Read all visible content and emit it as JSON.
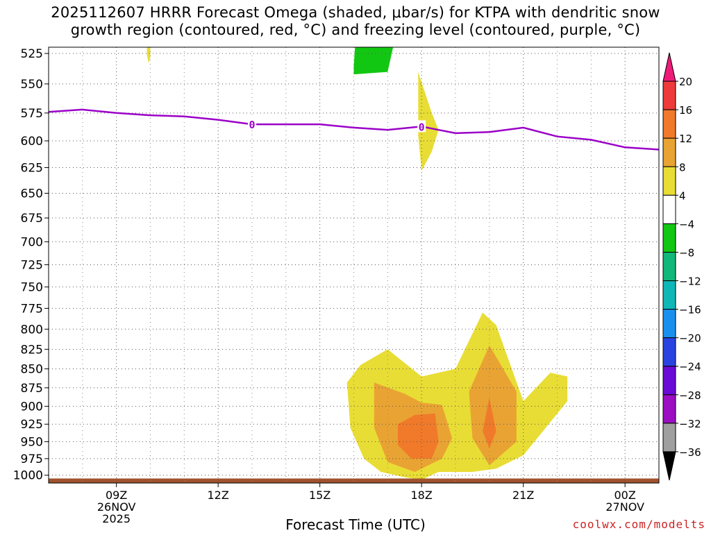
{
  "title": {
    "line1": "2025112607 HRRR Forecast Omega (shaded, μbar/s) for KTPA with dendritic snow",
    "line2": "growth region (contoured, red, °C) and freezing level (contoured, purple, °C)"
  },
  "credit": "coolwx.com/modelts",
  "chart_data": {
    "type": "contour",
    "xlabel": "Forecast Time (UTC)",
    "x_ticks": [
      {
        "label": "09Z",
        "sub1": "26NOV",
        "sub2": "2025",
        "hour": 9
      },
      {
        "label": "12Z",
        "sub1": "",
        "sub2": "",
        "hour": 12
      },
      {
        "label": "15Z",
        "sub1": "",
        "sub2": "",
        "hour": 15
      },
      {
        "label": "18Z",
        "sub1": "",
        "sub2": "",
        "hour": 18
      },
      {
        "label": "21Z",
        "sub1": "",
        "sub2": "",
        "hour": 21
      },
      {
        "label": "00Z",
        "sub1": "27NOV",
        "sub2": "",
        "hour": 24
      }
    ],
    "xlim": [
      7,
      25
    ],
    "y_ticks": [
      525,
      550,
      575,
      600,
      625,
      650,
      675,
      700,
      725,
      750,
      775,
      800,
      825,
      850,
      875,
      900,
      925,
      950,
      975,
      1000
    ],
    "ylim": [
      520,
      1012
    ],
    "y_scale": "log-pressure",
    "grid": true,
    "colorbar": {
      "levels": [
        20,
        16,
        12,
        8,
        4,
        -4,
        -8,
        -12,
        -16,
        -20,
        -24,
        -28,
        -32,
        -36
      ],
      "colors": [
        "#ee1c78",
        "#ee3a3a",
        "#f07a2a",
        "#e9a333",
        "#e8dd34",
        "#ffffff",
        "#12c712",
        "#12b77a",
        "#10b7b7",
        "#1a90ee",
        "#2a43e0",
        "#6a0ad6",
        "#9b0ec2",
        "#9f9f9f",
        "#000000"
      ]
    },
    "freezing_level": {
      "label": "0",
      "color": "#9b00c8",
      "points": [
        [
          7,
          574
        ],
        [
          8,
          572
        ],
        [
          9,
          575
        ],
        [
          10,
          577
        ],
        [
          11,
          578
        ],
        [
          12,
          581
        ],
        [
          13,
          585
        ],
        [
          14,
          585
        ],
        [
          15,
          585
        ],
        [
          16,
          588
        ],
        [
          17,
          590
        ],
        [
          18,
          587
        ],
        [
          19,
          593
        ],
        [
          20,
          592
        ],
        [
          21,
          588
        ],
        [
          22,
          596
        ],
        [
          23,
          599
        ],
        [
          24,
          606
        ],
        [
          25,
          608
        ]
      ],
      "label_positions": [
        [
          13,
          585
        ],
        [
          18,
          587
        ]
      ]
    },
    "shaded_regions": [
      {
        "level": "4 to 8",
        "color": "#e8dd34",
        "points": [
          [
            16.2,
            845
          ],
          [
            17,
            825
          ],
          [
            18,
            860
          ],
          [
            19,
            850
          ],
          [
            19.8,
            780
          ],
          [
            20.2,
            795
          ],
          [
            21,
            893
          ],
          [
            21.8,
            855
          ],
          [
            22.3,
            860
          ],
          [
            22.3,
            893
          ],
          [
            21,
            970
          ],
          [
            20.2,
            990
          ],
          [
            19.5,
            995
          ],
          [
            18.5,
            995
          ],
          [
            18,
            1007
          ],
          [
            17.5,
            1003
          ],
          [
            16.8,
            995
          ],
          [
            16.3,
            975
          ],
          [
            15.9,
            930
          ],
          [
            15.8,
            868
          ]
        ]
      },
      {
        "level": "8 to 12",
        "color": "#e9a333",
        "points": [
          [
            16.6,
            868
          ],
          [
            17.5,
            883
          ],
          [
            18,
            895
          ],
          [
            18.6,
            898
          ],
          [
            18.9,
            945
          ],
          [
            18.6,
            975
          ],
          [
            17.8,
            995
          ],
          [
            17,
            980
          ],
          [
            16.6,
            930
          ]
        ]
      },
      {
        "level": "8 to 12",
        "color": "#e9a333",
        "points": [
          [
            20,
            820
          ],
          [
            20.8,
            880
          ],
          [
            20.8,
            950
          ],
          [
            20,
            985
          ],
          [
            19.5,
            945
          ],
          [
            19.4,
            880
          ]
        ]
      },
      {
        "level": "12 to 16",
        "color": "#f07a2a",
        "points": [
          [
            17.3,
            925
          ],
          [
            17.8,
            912
          ],
          [
            18.4,
            910
          ],
          [
            18.5,
            950
          ],
          [
            18.3,
            975
          ],
          [
            17.7,
            975
          ],
          [
            17.3,
            955
          ]
        ]
      },
      {
        "level": "12 to 16",
        "color": "#f07a2a",
        "points": [
          [
            20,
            888
          ],
          [
            20.2,
            935
          ],
          [
            20,
            960
          ],
          [
            19.8,
            935
          ]
        ]
      },
      {
        "level": "4 to 8",
        "color": "#e8dd34",
        "points": [
          [
            17.9,
            540
          ],
          [
            18.3,
            575
          ],
          [
            18.5,
            590
          ],
          [
            18.3,
            610
          ],
          [
            18,
            628
          ],
          [
            17.9,
            595
          ]
        ]
      },
      {
        "level": "4 to 8",
        "color": "#e8dd34",
        "points": [
          [
            9.9,
            516
          ],
          [
            10,
            516
          ],
          [
            10,
            528
          ],
          [
            9.95,
            533
          ],
          [
            9.9,
            526
          ]
        ]
      },
      {
        "level": "-4 to -8",
        "color": "#12c712",
        "points": [
          [
            16.05,
            515
          ],
          [
            17.2,
            515
          ],
          [
            17,
            540
          ],
          [
            16,
            542
          ],
          [
            16,
            535
          ]
        ]
      }
    ],
    "ground": {
      "color": "#a0522d",
      "top_pressure": 1005
    }
  }
}
